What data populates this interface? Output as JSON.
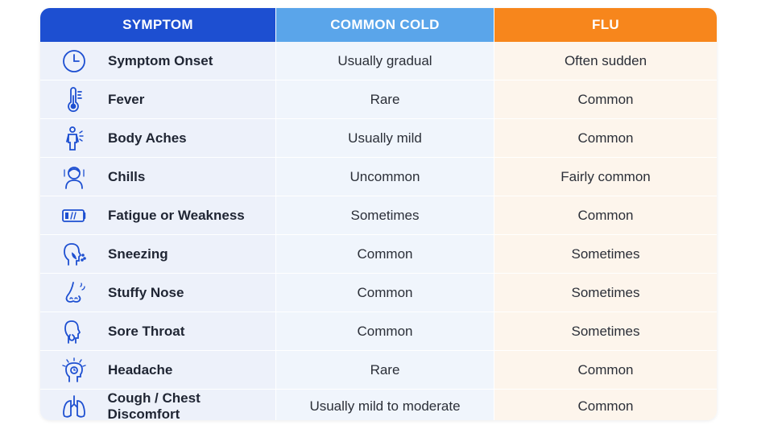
{
  "header": {
    "symptom": "SYMPTOM",
    "cold": "COMMON COLD",
    "flu": "FLU"
  },
  "colors": {
    "symptom_header": "#1d4fd1",
    "cold_header": "#5aa5ea",
    "flu_header": "#f7861c",
    "icon_stroke": "#1d4fd1"
  },
  "rows": [
    {
      "icon": "clock-icon",
      "symptom": "Symptom Onset",
      "cold": "Usually gradual",
      "flu": "Often sudden"
    },
    {
      "icon": "thermometer-icon",
      "symptom": "Fever",
      "cold": "Rare",
      "flu": "Common"
    },
    {
      "icon": "body-aches-icon",
      "symptom": "Body Aches",
      "cold": "Usually mild",
      "flu": "Common"
    },
    {
      "icon": "chills-icon",
      "symptom": "Chills",
      "cold": "Uncommon",
      "flu": "Fairly common"
    },
    {
      "icon": "low-battery-icon",
      "symptom": "Fatigue or Weakness",
      "cold": "Sometimes",
      "flu": "Common"
    },
    {
      "icon": "sneezing-icon",
      "symptom": "Sneezing",
      "cold": "Common",
      "flu": "Sometimes"
    },
    {
      "icon": "nose-icon",
      "symptom": "Stuffy Nose",
      "cold": "Common",
      "flu": "Sometimes"
    },
    {
      "icon": "sore-throat-icon",
      "symptom": "Sore Throat",
      "cold": "Common",
      "flu": "Sometimes"
    },
    {
      "icon": "headache-icon",
      "symptom": "Headache",
      "cold": "Rare",
      "flu": "Common"
    },
    {
      "icon": "lungs-icon",
      "symptom": "Cough / Chest Discomfort",
      "cold": "Usually mild to moderate",
      "flu": "Common"
    }
  ]
}
